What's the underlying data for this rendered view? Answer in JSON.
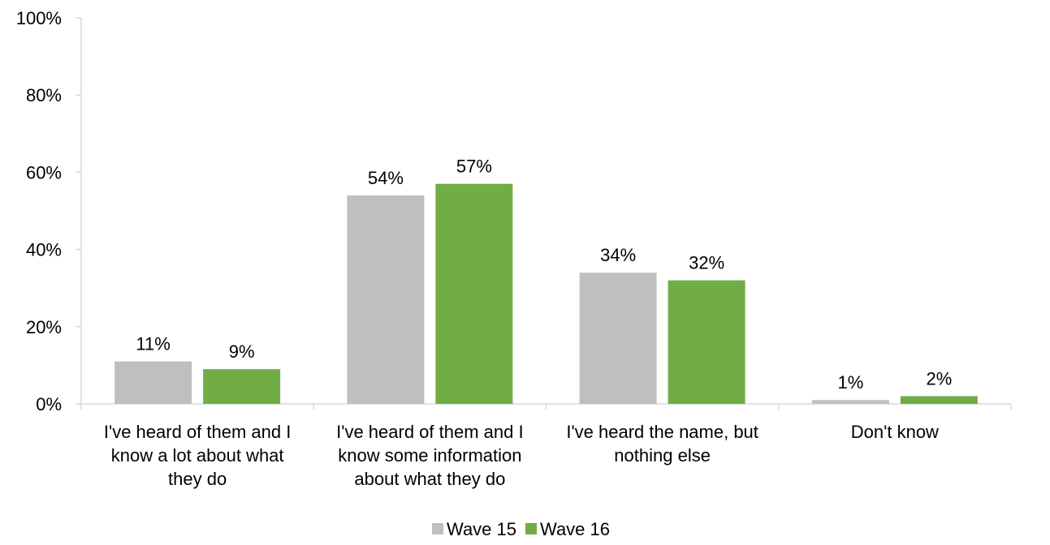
{
  "chart_data": {
    "type": "bar",
    "categories": [
      [
        "I've heard of them and I",
        "know a lot about what",
        "they do"
      ],
      [
        "I've heard of them and I",
        "know some information",
        "about what they do"
      ],
      [
        "I've heard the name, but",
        "nothing else"
      ],
      [
        "Don't know"
      ]
    ],
    "series": [
      {
        "name": "Wave 15",
        "color": "#bfbfbf",
        "values": [
          11,
          54,
          34,
          1
        ],
        "labels": [
          "11%",
          "54%",
          "34%",
          "1%"
        ]
      },
      {
        "name": "Wave 16",
        "color": "#70ad47",
        "values": [
          9,
          57,
          32,
          2
        ],
        "labels": [
          "9%",
          "57%",
          "32%",
          "2%"
        ]
      }
    ],
    "ylim": [
      0,
      100
    ],
    "yticks": [
      "0%",
      "20%",
      "40%",
      "60%",
      "80%",
      "100%"
    ],
    "grid": false,
    "legend_position": "bottom",
    "axis_color": "#d9d9d9"
  }
}
